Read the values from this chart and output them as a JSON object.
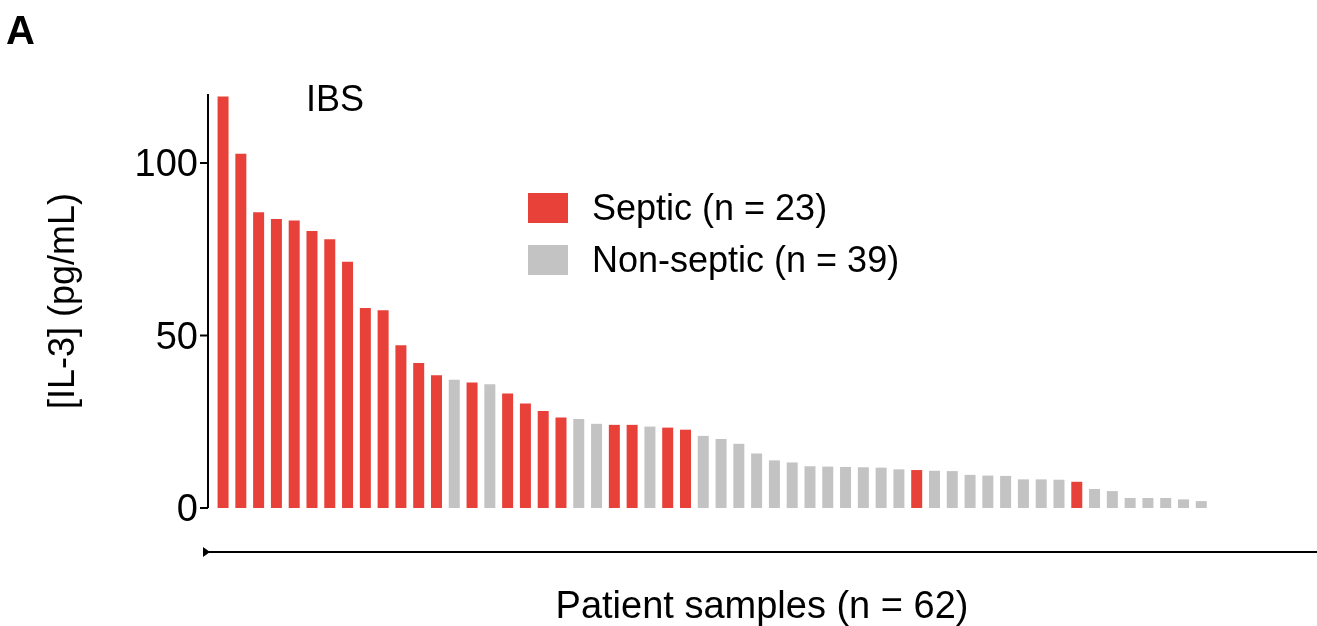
{
  "chart_data": {
    "type": "bar",
    "title": "IBS",
    "ylabel": "[IL-3] (pg/mL)",
    "xlabel": "Patient samples (n = 62)",
    "annotations": [
      "A"
    ],
    "categories": [
      null,
      null,
      null,
      null,
      null,
      null,
      null,
      null,
      null,
      null,
      null,
      null,
      null,
      null,
      null,
      null,
      null,
      null,
      null,
      null,
      null,
      null,
      null,
      null,
      null,
      null,
      null,
      null,
      null,
      null,
      null,
      null,
      null,
      null,
      null,
      null,
      null,
      null,
      null,
      null,
      null,
      null,
      null,
      null,
      null,
      null,
      null,
      null,
      null,
      null,
      null,
      null,
      null,
      null,
      null,
      null
    ],
    "stacked": true,
    "ylim": [
      0,
      120
    ],
    "yticks": [
      0,
      50,
      100
    ],
    "legend": "top right",
    "series": [
      {
        "name": "Septic (n = 23)",
        "color": "#e8413a",
        "values": [
          119.3,
          102.7,
          85.7,
          83.8,
          83.3,
          80.3,
          77.9,
          71.4,
          58.0,
          57.3,
          47.2,
          42.0,
          38.5,
          null,
          36.4,
          null,
          33.2,
          30.3,
          28.1,
          26.2,
          null,
          null,
          24.1,
          24.1,
          null,
          23.3,
          22.7,
          null,
          null,
          null,
          null,
          null,
          null,
          null,
          null,
          null,
          null,
          null,
          null,
          11.0,
          null,
          null,
          null,
          null,
          null,
          null,
          null,
          null,
          7.6,
          null,
          null,
          null,
          null,
          null,
          null,
          null
        ]
      },
      {
        "name": "Non-septic (n = 39)",
        "color": "#c3c3c3",
        "values": [
          null,
          null,
          null,
          null,
          null,
          null,
          null,
          null,
          null,
          null,
          null,
          null,
          null,
          37.2,
          null,
          35.9,
          null,
          null,
          null,
          null,
          25.8,
          24.4,
          null,
          null,
          23.6,
          null,
          null,
          20.9,
          20.0,
          18.6,
          15.8,
          13.8,
          13.2,
          12.1,
          12.0,
          11.9,
          11.8,
          11.7,
          11.2,
          null,
          10.8,
          10.7,
          9.6,
          9.4,
          9.3,
          8.3,
          8.3,
          8.2,
          null,
          5.5,
          4.9,
          2.9,
          2.9,
          2.9,
          2.5,
          2.0
        ]
      }
    ]
  }
}
